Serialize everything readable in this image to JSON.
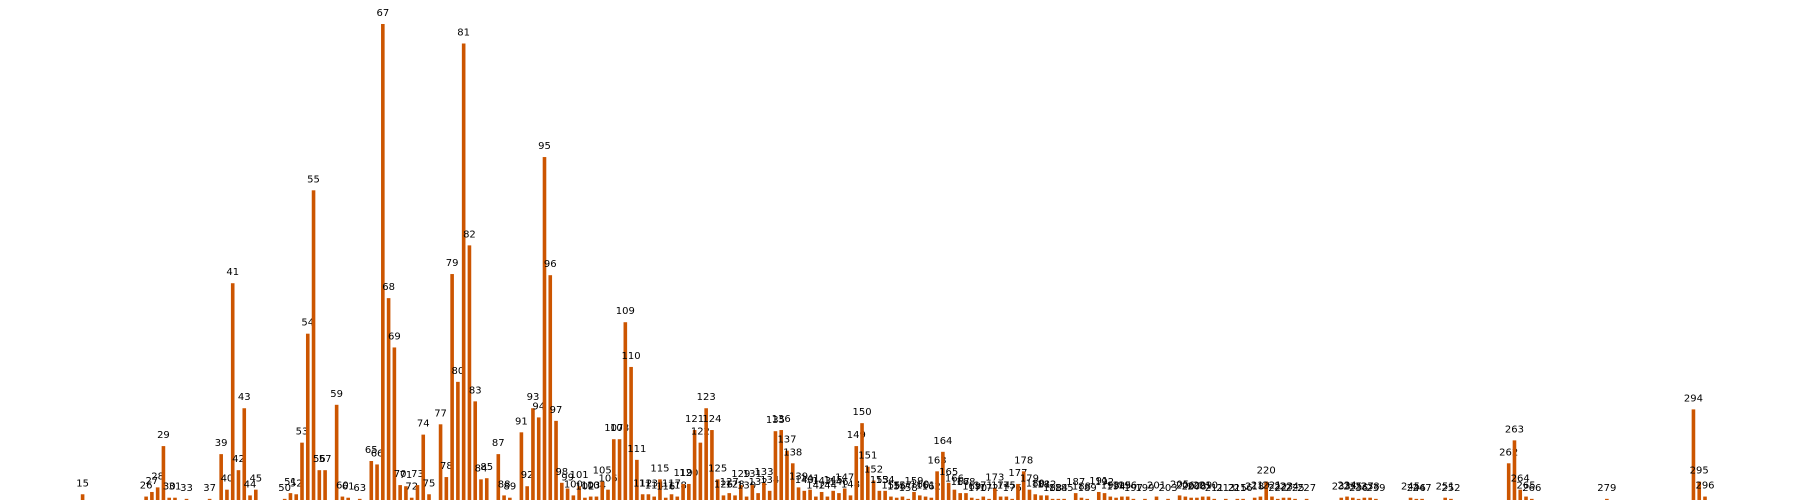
{
  "chart_data": {
    "type": "bar",
    "color": "#cc5500",
    "x": [
      15,
      26,
      27,
      28,
      29,
      30,
      31,
      33,
      37,
      39,
      40,
      41,
      42,
      43,
      44,
      45,
      50,
      51,
      52,
      53,
      54,
      55,
      56,
      57,
      59,
      60,
      61,
      63,
      65,
      66,
      67,
      68,
      69,
      70,
      71,
      72,
      73,
      74,
      75,
      77,
      78,
      79,
      80,
      81,
      82,
      83,
      84,
      85,
      87,
      88,
      89,
      91,
      92,
      93,
      94,
      95,
      96,
      97,
      98,
      99,
      100,
      101,
      102,
      103,
      104,
      105,
      106,
      107,
      108,
      109,
      110,
      111,
      112,
      113,
      114,
      115,
      116,
      117,
      118,
      119,
      120,
      121,
      122,
      123,
      124,
      125,
      126,
      127,
      128,
      129,
      130,
      131,
      132,
      133,
      134,
      135,
      136,
      137,
      138,
      139,
      140,
      141,
      142,
      143,
      144,
      145,
      146,
      147,
      148,
      149,
      150,
      151,
      152,
      153,
      154,
      155,
      156,
      157,
      158,
      159,
      160,
      161,
      162,
      163,
      164,
      165,
      166,
      167,
      168,
      169,
      170,
      171,
      172,
      173,
      174,
      175,
      176,
      177,
      178,
      179,
      180,
      181,
      182,
      183,
      184,
      185,
      187,
      188,
      189,
      191,
      192,
      193,
      194,
      195,
      196,
      197,
      199,
      201,
      203,
      205,
      206,
      207,
      208,
      209,
      210,
      211,
      213,
      215,
      216,
      218,
      219,
      220,
      221,
      222,
      223,
      224,
      225,
      227,
      233,
      234,
      235,
      236,
      237,
      238,
      239,
      245,
      246,
      247,
      251,
      252,
      262,
      263,
      264,
      265,
      266,
      279,
      294,
      295,
      296
    ],
    "values": [
      5,
      3,
      7,
      11,
      47,
      2,
      2,
      1,
      1,
      40,
      9,
      189,
      26,
      80,
      4,
      9,
      1,
      6,
      5,
      50,
      145,
      270,
      26,
      26,
      83,
      3,
      2,
      1,
      34,
      31,
      415,
      176,
      133,
      13,
      12,
      2,
      13,
      57,
      5,
      66,
      20,
      197,
      103,
      398,
      222,
      86,
      18,
      19,
      40,
      4,
      2,
      59,
      12,
      80,
      72,
      299,
      196,
      69,
      15,
      10,
      4,
      12,
      2,
      3,
      3,
      16,
      9,
      53,
      53,
      155,
      116,
      35,
      5,
      5,
      3,
      18,
      2,
      5,
      3,
      14,
      14,
      61,
      50,
      80,
      61,
      18,
      4,
      6,
      4,
      13,
      3,
      13,
      6,
      15,
      8,
      60,
      61,
      43,
      32,
      11,
      8,
      9,
      3,
      7,
      3,
      8,
      6,
      10,
      4,
      47,
      67,
      29,
      17,
      8,
      8,
      3,
      2,
      3,
      1,
      7,
      4,
      3,
      2,
      25,
      42,
      15,
      9,
      6,
      6,
      2,
      1,
      3,
      1,
      10,
      3,
      3,
      1,
      14,
      25,
      9,
      5,
      4,
      4,
      1,
      1,
      1,
      6,
      2,
      1,
      7,
      6,
      3,
      2,
      3,
      3,
      1,
      1,
      3,
      1,
      4,
      3,
      2,
      2,
      3,
      3,
      1,
      1,
      1,
      1,
      2,
      3,
      16,
      3,
      1,
      2,
      2,
      1,
      1,
      2,
      3,
      2,
      1,
      2,
      2,
      1,
      2,
      1,
      1,
      2,
      1,
      32,
      52,
      9,
      3,
      1,
      1,
      79,
      16,
      3
    ]
  }
}
